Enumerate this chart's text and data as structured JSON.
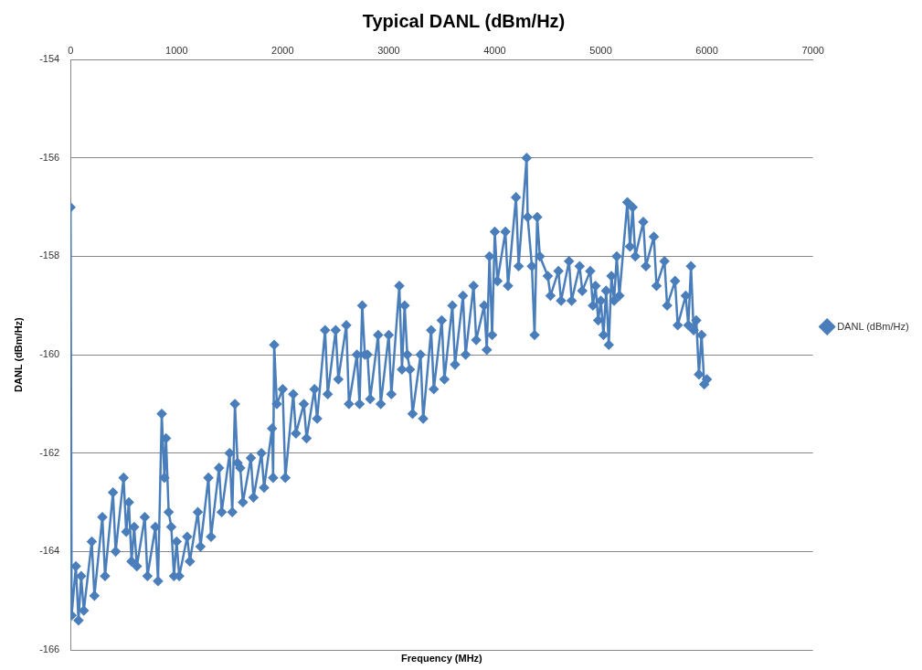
{
  "chart_data": {
    "type": "line",
    "title": "Typical DANL (dBm/Hz)",
    "xlabel": "Frequency (MHz)",
    "ylabel": "DANL (dBm/Hz)",
    "xlim": [
      0,
      7000
    ],
    "xticks": [
      0,
      1000,
      2000,
      3000,
      4000,
      5000,
      6000,
      7000
    ],
    "ylim": [
      -166,
      -154
    ],
    "yticks": [
      -166,
      -164,
      -162,
      -160,
      -158,
      -156,
      -154
    ],
    "grid": "y",
    "legend": "right",
    "marker": "diamond",
    "line_style": "solid",
    "series": [
      {
        "name": "DANL (dBm/Hz)",
        "color": "#4a7ebb",
        "x": [
          0,
          10,
          50,
          75,
          100,
          125,
          200,
          225,
          300,
          325,
          400,
          425,
          500,
          525,
          550,
          575,
          600,
          625,
          700,
          725,
          800,
          825,
          860,
          885,
          900,
          925,
          950,
          975,
          1000,
          1025,
          1100,
          1125,
          1200,
          1225,
          1300,
          1325,
          1400,
          1425,
          1500,
          1525,
          1550,
          1575,
          1600,
          1625,
          1700,
          1725,
          1800,
          1825,
          1900,
          1910,
          1920,
          1945,
          2000,
          2025,
          2100,
          2125,
          2200,
          2225,
          2300,
          2325,
          2400,
          2425,
          2500,
          2525,
          2600,
          2625,
          2700,
          2725,
          2750,
          2775,
          2800,
          2825,
          2900,
          2925,
          3000,
          3025,
          3100,
          3125,
          3150,
          3175,
          3200,
          3225,
          3300,
          3325,
          3400,
          3425,
          3500,
          3525,
          3600,
          3625,
          3700,
          3725,
          3800,
          3825,
          3900,
          3925,
          3950,
          3975,
          4000,
          4025,
          4100,
          4125,
          4200,
          4225,
          4300,
          4310,
          4350,
          4375,
          4400,
          4425,
          4500,
          4525,
          4600,
          4625,
          4700,
          4725,
          4800,
          4825,
          4900,
          4925,
          4950,
          4975,
          5000,
          5025,
          5050,
          5075,
          5100,
          5125,
          5150,
          5175,
          5250,
          5275,
          5300,
          5325,
          5400,
          5425,
          5500,
          5525,
          5600,
          5625,
          5700,
          5725,
          5800,
          5825,
          5850,
          5875,
          5900,
          5925,
          5950,
          5975,
          6000
        ],
        "values": [
          -157,
          -165.3,
          -164.3,
          -165.4,
          -164.5,
          -165.2,
          -163.8,
          -164.9,
          -163.3,
          -164.5,
          -162.8,
          -164.0,
          -162.5,
          -163.6,
          -163.0,
          -164.2,
          -163.5,
          -164.3,
          -163.3,
          -164.5,
          -163.5,
          -164.6,
          -161.2,
          -162.5,
          -161.7,
          -163.2,
          -163.5,
          -164.5,
          -163.8,
          -164.5,
          -163.7,
          -164.2,
          -163.2,
          -163.9,
          -162.5,
          -163.7,
          -162.3,
          -163.2,
          -162.0,
          -163.2,
          -161.0,
          -162.2,
          -162.3,
          -163.0,
          -162.1,
          -162.9,
          -162.0,
          -162.7,
          -161.5,
          -162.5,
          -159.8,
          -161.0,
          -160.7,
          -162.5,
          -160.8,
          -161.6,
          -161.0,
          -161.7,
          -160.7,
          -161.3,
          -159.5,
          -160.8,
          -159.5,
          -160.5,
          -159.4,
          -161.0,
          -160.0,
          -161.0,
          -159.0,
          -160.0,
          -160.0,
          -160.9,
          -159.6,
          -161.0,
          -159.6,
          -160.8,
          -158.6,
          -160.3,
          -159.0,
          -160.0,
          -160.3,
          -161.2,
          -160.0,
          -161.3,
          -159.5,
          -160.7,
          -159.3,
          -160.5,
          -159.0,
          -160.2,
          -158.8,
          -160.0,
          -158.6,
          -159.7,
          -159.0,
          -159.9,
          -158.0,
          -159.6,
          -157.5,
          -158.5,
          -157.5,
          -158.6,
          -156.8,
          -158.2,
          -156.0,
          -157.2,
          -158.2,
          -159.6,
          -157.2,
          -158.0,
          -158.4,
          -158.8,
          -158.3,
          -158.9,
          -158.1,
          -158.9,
          -158.2,
          -158.7,
          -158.3,
          -159.0,
          -158.6,
          -159.3,
          -158.9,
          -159.6,
          -158.7,
          -159.8,
          -158.4,
          -158.9,
          -158.0,
          -158.8,
          -156.9,
          -157.8,
          -157.0,
          -158.0,
          -157.3,
          -158.2,
          -157.6,
          -158.6,
          -158.1,
          -159.0,
          -158.5,
          -159.4,
          -158.8,
          -159.4,
          -158.2,
          -159.5,
          -159.3,
          -160.4,
          -159.6,
          -160.6,
          -160.5
        ]
      }
    ]
  }
}
